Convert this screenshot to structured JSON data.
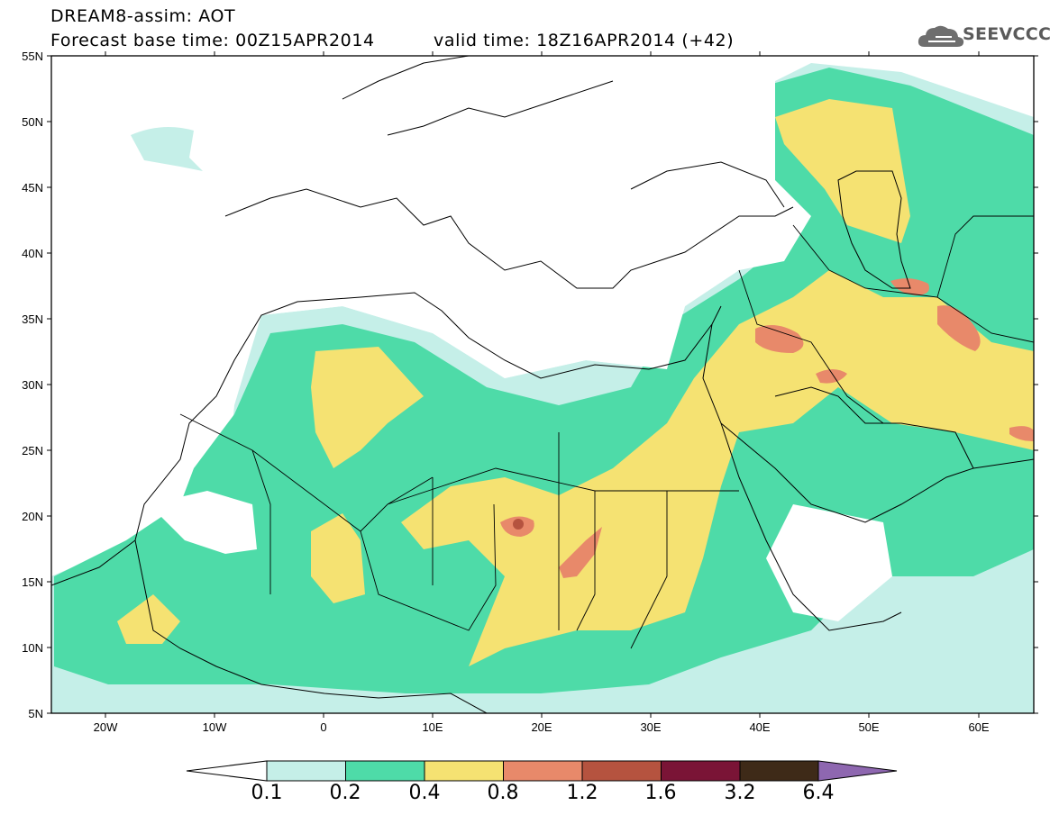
{
  "title": {
    "line1": "DREAM8-assim: AOT",
    "base_time": "Forecast base time: 00Z15APR2014",
    "valid_time": "valid time: 18Z16APR2014 (+42)"
  },
  "logo": {
    "text": "SEEVCCC",
    "icon": "cloud-icon"
  },
  "map": {
    "projection": "lat-lon",
    "lon_range": [
      -25,
      65
    ],
    "lat_range": [
      5,
      55
    ],
    "lat_labels": [
      "55N",
      "50N",
      "45N",
      "40N",
      "35N",
      "30N",
      "25N",
      "20N",
      "15N",
      "10N",
      "5N"
    ],
    "lon_labels": [
      "20W",
      "10W",
      "0",
      "10E",
      "20E",
      "30E",
      "40E",
      "50E",
      "60E"
    ],
    "variable": "AOT"
  },
  "colorbar": {
    "levels": [
      "0.1",
      "0.2",
      "0.4",
      "0.8",
      "1.2",
      "1.6",
      "3.2",
      "6.4"
    ],
    "colors": [
      "#c5efe8",
      "#4edba8",
      "#f5e272",
      "#e8896a",
      "#b5533f",
      "#7a1436",
      "#3e2a18",
      "#8e67b0"
    ],
    "under_color": "#ffffff"
  }
}
